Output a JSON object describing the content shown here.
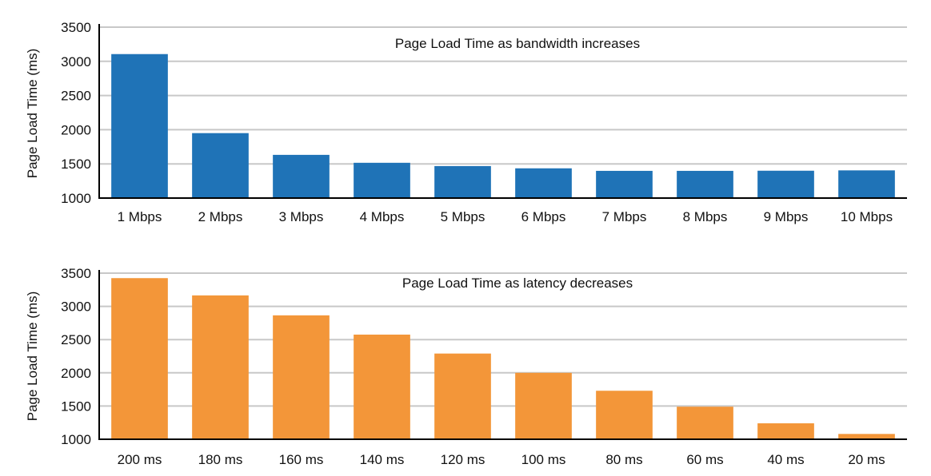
{
  "chart_data": [
    {
      "type": "bar",
      "title": "Page Load Time as bandwidth increases",
      "xlabel": "",
      "ylabel": "Page Load Time (ms)",
      "ylim": [
        1000,
        3500
      ],
      "yticks": [
        1000,
        1500,
        2000,
        2500,
        3000,
        3500
      ],
      "grid": true,
      "color": "#1f73b7",
      "categories": [
        "1 Mbps",
        "2 Mbps",
        "3 Mbps",
        "4 Mbps",
        "5 Mbps",
        "6 Mbps",
        "7 Mbps",
        "8 Mbps",
        "9 Mbps",
        "10 Mbps"
      ],
      "values": [
        3106,
        1950,
        1632,
        1516,
        1468,
        1435,
        1398,
        1398,
        1400,
        1405
      ]
    },
    {
      "type": "bar",
      "title": "Page Load Time as latency decreases",
      "xlabel": "",
      "ylabel": "Page Load Time (ms)",
      "ylim": [
        1000,
        3500
      ],
      "yticks": [
        1000,
        1500,
        2000,
        2500,
        3000,
        3500
      ],
      "grid": true,
      "color": "#f39639",
      "categories": [
        "200 ms",
        "180 ms",
        "160 ms",
        "140 ms",
        "120 ms",
        "100 ms",
        "80 ms",
        "60 ms",
        "40 ms",
        "20 ms"
      ],
      "values": [
        3425,
        3165,
        2865,
        2575,
        2290,
        2000,
        1730,
        1490,
        1240,
        1080
      ]
    }
  ]
}
